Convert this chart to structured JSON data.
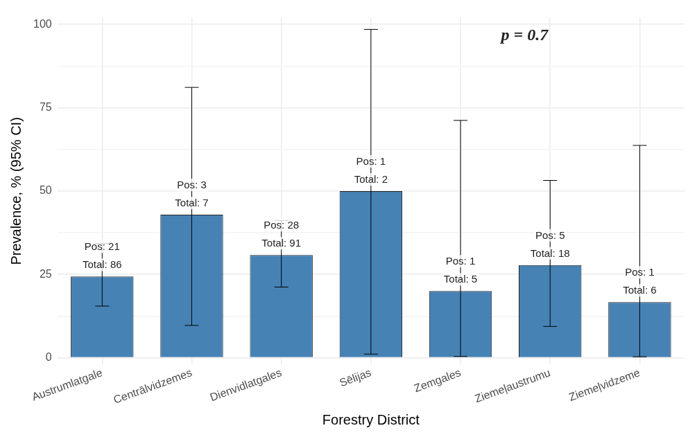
{
  "chart_data": {
    "type": "bar",
    "xlabel": "Forestry District",
    "ylabel": "Prevalence, % (95% CI)",
    "categories": [
      "Austrumlatgale",
      "Centrālvidzemes",
      "Dienvidlatgales",
      "Sēlijas",
      "Zemgales",
      "Ziemeļaustrumu",
      "Ziemeļvidzeme"
    ],
    "values": [
      24.4,
      42.9,
      30.8,
      50,
      20,
      27.8,
      16.7
    ],
    "errors": [
      [
        15.5,
        34.3
      ],
      [
        9.7,
        81.1
      ],
      [
        21.2,
        41.2
      ],
      [
        1.1,
        98.5
      ],
      [
        0.4,
        71.2
      ],
      [
        9.4,
        53.2
      ],
      [
        0.3,
        63.7
      ]
    ],
    "value_labels": [
      "Pos: 21\nTotal: 86",
      "Pos: 3\nTotal: 7",
      "Pos: 28\nTotal: 91",
      "Pos: 1\nTotal: 2",
      "Pos: 1\nTotal: 5",
      "Pos: 5\nTotal: 18",
      "Pos: 1\nTotal: 6"
    ],
    "color": "#4682b4",
    "ylim": [
      -2,
      102
    ],
    "yticks": [
      0,
      {
        "value": 12.5,
        "label": null
      },
      25,
      {
        "value": 37.5,
        "label": null
      },
      50,
      {
        "value": 62.5,
        "label": null
      },
      75,
      {
        "value": 87.5,
        "label": null
      },
      100
    ],
    "grid": true,
    "annotations": [
      "p = 0.7"
    ]
  }
}
